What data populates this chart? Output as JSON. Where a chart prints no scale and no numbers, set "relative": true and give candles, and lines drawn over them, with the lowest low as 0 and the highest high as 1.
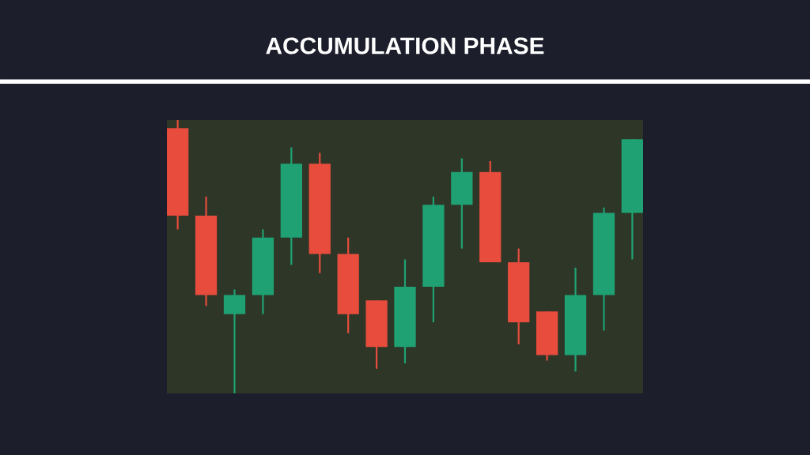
{
  "chart_data": {
    "type": "candlestick",
    "title": "ACCUMULATION PHASE",
    "relative": true,
    "categories": [
      null,
      null,
      null,
      null,
      null,
      null,
      null,
      null,
      null,
      null,
      null,
      null,
      null,
      null,
      null,
      null,
      null
    ],
    "ohlc": [
      [
        0.97,
        1.0,
        0.6,
        0.65
      ],
      [
        0.65,
        0.72,
        0.32,
        0.36
      ],
      [
        0.29,
        0.38,
        0.0,
        0.36
      ],
      [
        0.36,
        0.6,
        0.29,
        0.57
      ],
      [
        0.57,
        0.9,
        0.47,
        0.84
      ],
      [
        0.84,
        0.88,
        0.44,
        0.51
      ],
      [
        0.51,
        0.57,
        0.22,
        0.29
      ],
      [
        0.34,
        0.34,
        0.09,
        0.17
      ],
      [
        0.17,
        0.49,
        0.11,
        0.39
      ],
      [
        0.39,
        0.72,
        0.26,
        0.69
      ],
      [
        0.69,
        0.86,
        0.53,
        0.81
      ],
      [
        0.81,
        0.85,
        0.48,
        0.48
      ],
      [
        0.48,
        0.53,
        0.18,
        0.26
      ],
      [
        0.3,
        0.3,
        0.12,
        0.14
      ],
      [
        0.14,
        0.46,
        0.08,
        0.36
      ],
      [
        0.36,
        0.68,
        0.23,
        0.66
      ],
      [
        0.66,
        0.93,
        0.49,
        0.93
      ]
    ],
    "colors": [
      "#e74c3c",
      "#e74c3c",
      "#1fa173",
      "#1fa173",
      "#1fa173",
      "#e74c3c",
      "#e74c3c",
      "#e74c3c",
      "#1fa173",
      "#1fa173",
      "#1fa173",
      "#e74c3c",
      "#e74c3c",
      "#e74c3c",
      "#1fa173",
      "#1fa173",
      "#1fa173"
    ]
  }
}
